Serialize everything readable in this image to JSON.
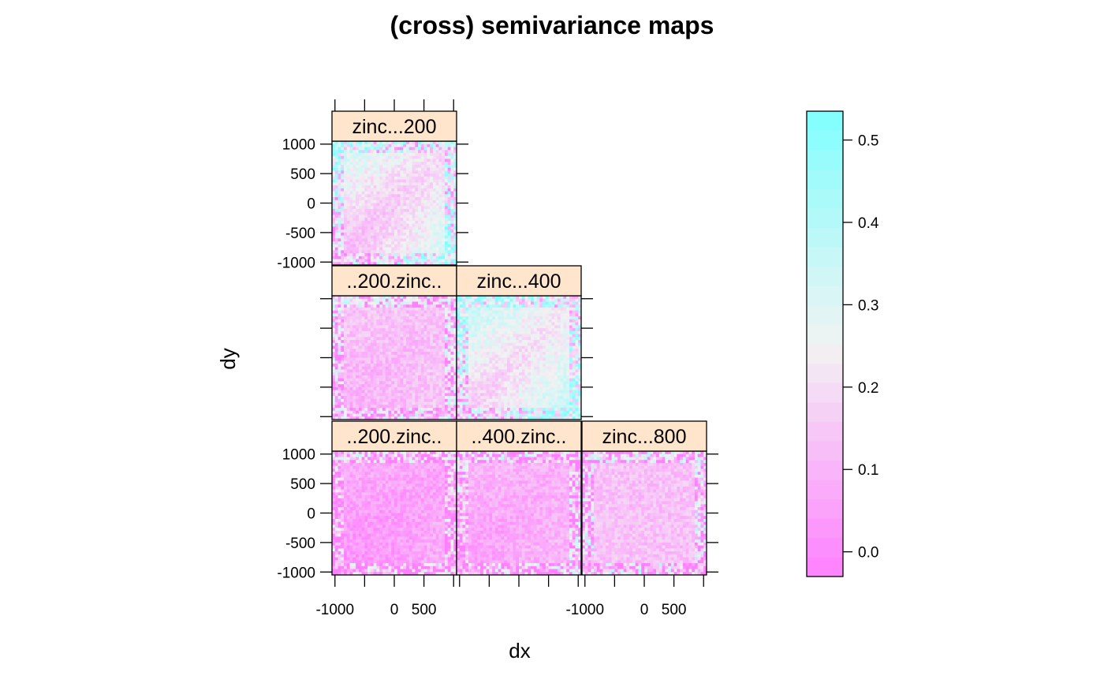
{
  "chart_data": {
    "type": "heatmap",
    "title": "(cross) semivariance maps",
    "xlabel": "dx",
    "ylabel": "dy",
    "x_ticks": [
      "-1000",
      "0",
      "500"
    ],
    "y_ticks": [
      "1000",
      "500",
      "0",
      "-500",
      "-1000"
    ],
    "xlim": [
      -1050,
      1050
    ],
    "ylim": [
      -1050,
      1050
    ],
    "panels": [
      {
        "label": "zinc...200",
        "row": 0,
        "col": 0,
        "pattern": "auto",
        "base": 0.23
      },
      {
        "label": "..200.zinc..",
        "row": 1,
        "col": 0,
        "pattern": "cross",
        "base": 0.14
      },
      {
        "label": "zinc...400",
        "row": 1,
        "col": 1,
        "pattern": "auto",
        "base": 0.27
      },
      {
        "label": "..200.zinc..",
        "row": 2,
        "col": 0,
        "pattern": "cross",
        "base": 0.07
      },
      {
        "label": "..400.zinc..",
        "row": 2,
        "col": 1,
        "pattern": "cross",
        "base": 0.1
      },
      {
        "label": "zinc...800",
        "row": 2,
        "col": 2,
        "pattern": "flat",
        "base": 0.13
      }
    ],
    "colorbar": {
      "min": -0.03,
      "max": 0.535,
      "ticks": [
        "0.0",
        "0.1",
        "0.2",
        "0.3",
        "0.4",
        "0.5"
      ],
      "low_color": "#ff80ff",
      "mid_color": "#f2f2f2",
      "high_color": "#80ffff"
    }
  }
}
